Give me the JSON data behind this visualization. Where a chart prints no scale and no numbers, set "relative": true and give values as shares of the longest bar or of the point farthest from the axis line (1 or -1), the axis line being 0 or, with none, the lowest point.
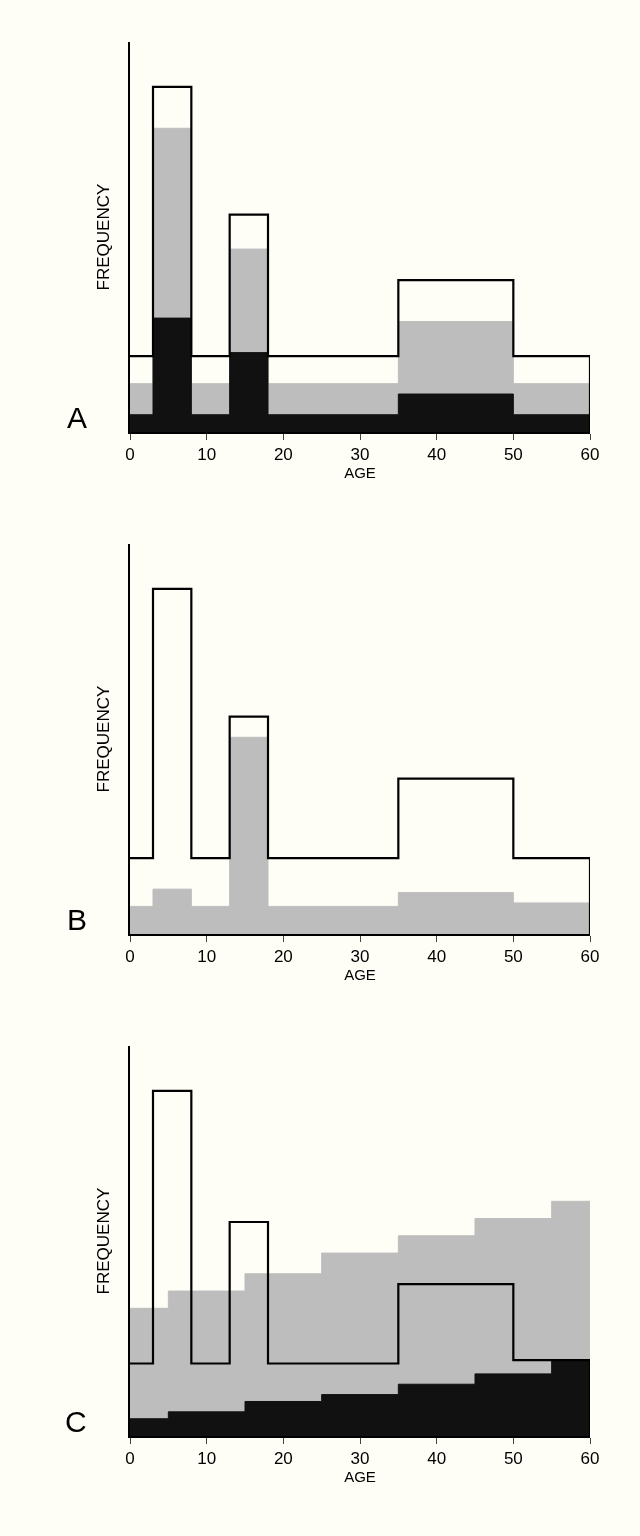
{
  "chart_data": [
    {
      "type": "area",
      "relative": true,
      "xlabel": "AGE",
      "ylabel": "FREQUENCY",
      "xlim": [
        0,
        60
      ],
      "xticks": [
        0,
        10,
        20,
        30,
        40,
        50,
        60
      ],
      "annotations": [
        "A"
      ],
      "series": [
        {
          "color": "#bdbdbd",
          "x": [
            0,
            3,
            3,
            8,
            8,
            13,
            13,
            18,
            18,
            35,
            35,
            50,
            50,
            60,
            60
          ],
          "values": [
            0.14,
            0.14,
            0.88,
            0.88,
            0.14,
            0.14,
            0.53,
            0.53,
            0.14,
            0.14,
            0.32,
            0.32,
            0.14,
            0.14,
            0
          ]
        },
        {
          "color": "#111111",
          "x": [
            0,
            3,
            3,
            8,
            8,
            13,
            13,
            18,
            18,
            35,
            35,
            50,
            50,
            60,
            60
          ],
          "values": [
            0.05,
            0.05,
            0.33,
            0.33,
            0.05,
            0.05,
            0.23,
            0.23,
            0.05,
            0.05,
            0.11,
            0.11,
            0.05,
            0.05,
            0
          ]
        },
        {
          "type": "step",
          "color": "#000000",
          "x": [
            0,
            3,
            8,
            13,
            18,
            35,
            50,
            60
          ],
          "values": [
            0.22,
            1,
            0.22,
            0.63,
            0.22,
            0.44,
            0.22,
            0
          ]
        }
      ]
    },
    {
      "type": "area",
      "relative": true,
      "xlabel": "AGE",
      "ylabel": "FREQUENCY",
      "xlim": [
        0,
        60
      ],
      "xticks": [
        0,
        10,
        20,
        30,
        40,
        50,
        60
      ],
      "annotations": [
        "B"
      ],
      "series": [
        {
          "color": "#bdbdbd",
          "x": [
            0,
            3,
            3,
            8,
            8,
            13,
            13,
            18,
            18,
            35,
            35,
            50,
            50,
            60,
            60
          ],
          "values": [
            0.08,
            0.08,
            0.13,
            0.13,
            0.08,
            0.08,
            0.57,
            0.57,
            0.08,
            0.08,
            0.12,
            0.12,
            0.09,
            0.09,
            0
          ]
        },
        {
          "type": "step",
          "color": "#000000",
          "x": [
            0,
            3,
            8,
            13,
            18,
            35,
            50,
            60
          ],
          "values": [
            0.22,
            1,
            0.22,
            0.63,
            0.22,
            0.45,
            0.22,
            0
          ]
        }
      ]
    },
    {
      "type": "area",
      "relative": true,
      "xlabel": "AGE",
      "ylabel": "FREQUENCY",
      "xlim": [
        0,
        60
      ],
      "xticks": [
        0,
        10,
        20,
        30,
        40,
        50,
        60
      ],
      "annotations": [
        "C"
      ],
      "series": [
        {
          "color": "#bdbdbd",
          "x": [
            0,
            5,
            5,
            15,
            15,
            25,
            25,
            35,
            35,
            45,
            45,
            55,
            55,
            60,
            60
          ],
          "values": [
            0.37,
            0.37,
            0.42,
            0.42,
            0.47,
            0.47,
            0.53,
            0.53,
            0.58,
            0.58,
            0.63,
            0.63,
            0.68,
            0.68,
            0
          ]
        },
        {
          "color": "#111111",
          "x": [
            0,
            5,
            5,
            15,
            15,
            25,
            25,
            35,
            35,
            45,
            45,
            55,
            55,
            60,
            60
          ],
          "values": [
            0.05,
            0.05,
            0.07,
            0.07,
            0.1,
            0.1,
            0.12,
            0.12,
            0.15,
            0.15,
            0.18,
            0.18,
            0.22,
            0.22,
            0
          ]
        },
        {
          "type": "step",
          "color": "#000000",
          "x": [
            0,
            3,
            8,
            13,
            18,
            35,
            50,
            60
          ],
          "values": [
            0.21,
            1,
            0.21,
            0.62,
            0.21,
            0.44,
            0.22,
            0
          ]
        }
      ]
    }
  ]
}
